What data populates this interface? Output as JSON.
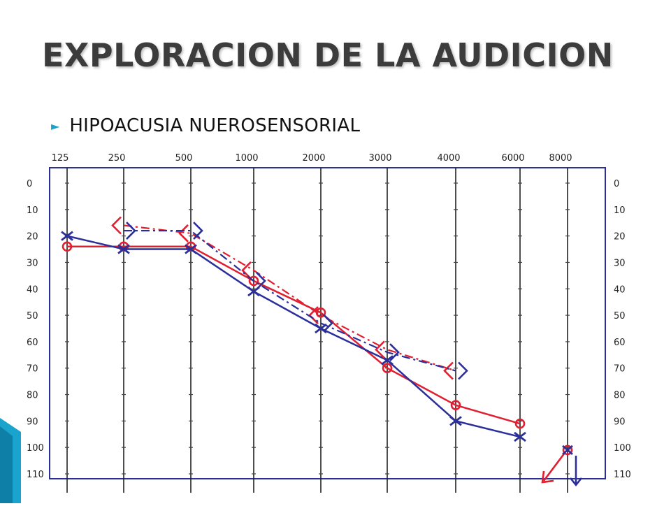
{
  "slide": {
    "title": "EXPLORACION DE LA AUDICION",
    "bullet": "HIPOACUSIA NUEROSENSORIAL"
  },
  "colors": {
    "accent": "#1aa3cc",
    "right_ear": "#e02030",
    "left_ear": "#2b2f9a",
    "grid": "#222222"
  },
  "chart_data": {
    "type": "line",
    "x_ticks": [
      "125",
      "250",
      "500",
      "1000",
      "2000",
      "3000",
      "4000",
      "6000",
      "8000"
    ],
    "y_ticks": [
      "0",
      "10",
      "20",
      "30",
      "40",
      "50",
      "60",
      "70",
      "80",
      "90",
      "100",
      "110"
    ],
    "ylim": [
      0,
      110
    ],
    "y_inverted": true,
    "grid": true,
    "series": [
      {
        "marker": "circle",
        "color": "#e02030",
        "points": [
          {
            "x": "125",
            "y": 24
          },
          {
            "x": "250",
            "y": 24
          },
          {
            "x": "500",
            "y": 24
          },
          {
            "x": "1000",
            "y": 37
          },
          {
            "x": "2000",
            "y": 49
          },
          {
            "x": "3000",
            "y": 70
          },
          {
            "x": "4000",
            "y": 84
          },
          {
            "x": "6000",
            "y": 91
          }
        ]
      },
      {
        "marker": "x",
        "color": "#2b2f9a",
        "points": [
          {
            "x": "125",
            "y": 20
          },
          {
            "x": "250",
            "y": 25
          },
          {
            "x": "500",
            "y": 25
          },
          {
            "x": "1000",
            "y": 41
          },
          {
            "x": "2000",
            "y": 55
          },
          {
            "x": "3000",
            "y": 67
          },
          {
            "x": "4000",
            "y": 90
          },
          {
            "x": "6000",
            "y": 96
          }
        ]
      },
      {
        "marker": "bracket-left",
        "color": "#e02030",
        "points": [
          {
            "x": "250",
            "y": 16
          },
          {
            "x": "500",
            "y": 19
          },
          {
            "x": "1000",
            "y": 33
          },
          {
            "x": "2000",
            "y": 50
          },
          {
            "x": "3000",
            "y": 63
          },
          {
            "x": "4000",
            "y": 71
          }
        ]
      },
      {
        "marker": "bracket-right",
        "color": "#2b2f9a",
        "points": [
          {
            "x": "250",
            "y": 18
          },
          {
            "x": "500",
            "y": 18
          },
          {
            "x": "1000",
            "y": 37
          },
          {
            "x": "2000",
            "y": 53
          },
          {
            "x": "3000",
            "y": 64
          },
          {
            "x": "4000",
            "y": 71
          }
        ]
      }
    ],
    "no_response": [
      {
        "x": "8000",
        "y": 101,
        "marker": "circle",
        "color": "#e02030"
      },
      {
        "x": "8000",
        "y": 101,
        "marker": "x",
        "color": "#2b2f9a"
      }
    ]
  }
}
